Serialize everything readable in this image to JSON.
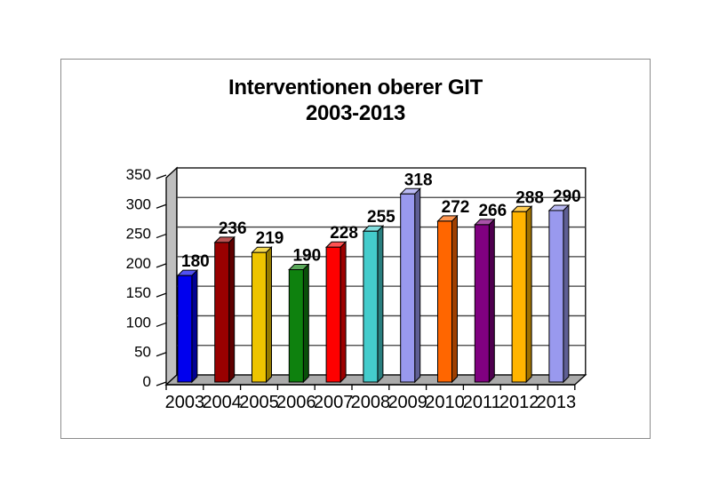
{
  "page": {
    "background": "#ffffff"
  },
  "frame": {
    "border_color": "#8c8c8c"
  },
  "chart_data": {
    "type": "bar",
    "style": "3d-column",
    "title_line1": "Interventionen oberer GIT",
    "title_line2": "2003-2013",
    "categories": [
      "2003",
      "2004",
      "2005",
      "2006",
      "2007",
      "2008",
      "2009",
      "2010",
      "2011",
      "2012",
      "2013"
    ],
    "values": [
      180,
      236,
      219,
      190,
      228,
      255,
      318,
      272,
      266,
      288,
      290
    ],
    "bar_colors": [
      "#0000EE",
      "#990000",
      "#EEC400",
      "#0E810E",
      "#FE0000",
      "#44CCCC",
      "#9999EE",
      "#FF6600",
      "#800080",
      "#FFB400",
      "#9999EE"
    ],
    "y_ticks": [
      0,
      50,
      100,
      150,
      200,
      250,
      300,
      350
    ],
    "ylim": [
      0,
      350
    ],
    "grid": true,
    "legend": "none",
    "xlabel": "",
    "ylabel": "",
    "colors": {
      "wall": "#BFBFBF",
      "floor": "#ABABAB",
      "plot_background": "#FFFFFF",
      "axis": "#000000",
      "gridline": "#3C3C3C",
      "text": "#000000"
    }
  }
}
